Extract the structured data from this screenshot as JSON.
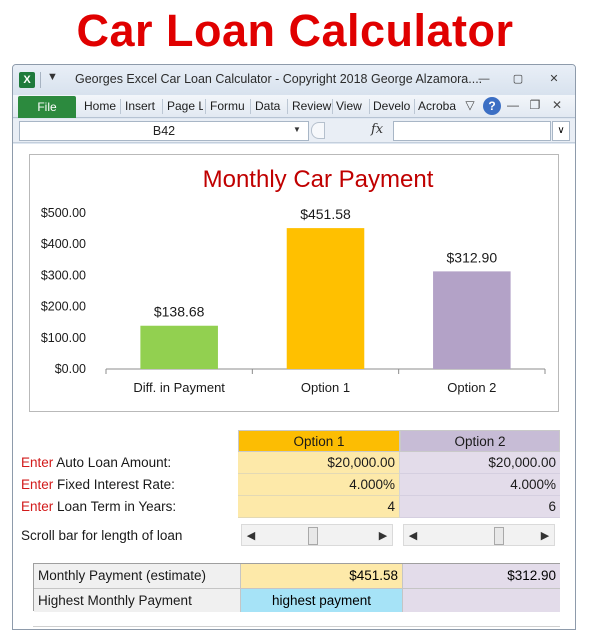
{
  "banner": {
    "title": "Car Loan Calculator"
  },
  "window": {
    "title": "Georges Excel Car Loan Calculator - Copyright 2018 George Alzamora....",
    "app_icon": "excel-icon",
    "controls": {
      "minimize": "—",
      "restore": "▢",
      "close": "✕"
    }
  },
  "ribbon": {
    "file_label": "File",
    "tabs": [
      "Home",
      "Insert",
      "Page L",
      "Formu",
      "Data",
      "Review",
      "View",
      "Develo",
      "Acroba"
    ],
    "help_label": "?"
  },
  "formula_bar": {
    "name_box": "B42",
    "fx_label": "fx",
    "formula": ""
  },
  "chart_data": {
    "type": "bar",
    "title": "Monthly Car Payment",
    "categories": [
      "Diff. in Payment",
      "Option 1",
      "Option 2"
    ],
    "values": [
      138.68,
      451.58,
      312.9
    ],
    "data_labels": [
      "$138.68",
      "$451.58",
      "$312.90"
    ],
    "colors": [
      "#92d050",
      "#ffc000",
      "#b3a2c7"
    ],
    "ylim": [
      0,
      500
    ],
    "yticks": [
      0,
      100,
      200,
      300,
      400,
      500
    ],
    "ytick_labels": [
      "$0.00",
      "$100.00",
      "$200.00",
      "$300.00",
      "$400.00",
      "$500.00"
    ],
    "grid": false,
    "legend": "none"
  },
  "table": {
    "headers": {
      "option1": "Option 1",
      "option2": "Option 2"
    },
    "rows": [
      {
        "enter": "Enter",
        "label": " Auto Loan Amount:",
        "option1": "$20,000.00",
        "option2": "$20,000.00"
      },
      {
        "enter": "Enter",
        "label": " Fixed Interest Rate:",
        "option1": "4.000%",
        "option2": "4.000%"
      },
      {
        "enter": "Enter",
        "label": " Loan Term in Years:",
        "option1": "4",
        "option2": "6"
      }
    ],
    "scroll_label": "Scroll bar for length of loan",
    "scroll_left": "◀",
    "scroll_right": "▶"
  },
  "results": {
    "monthly_label": "Monthly Payment (estimate)",
    "monthly_option1": "$451.58",
    "monthly_option2": "$312.90",
    "highest_label": "Highest Monthly Payment",
    "highest_value": "highest payment",
    "highest_color": "#a6e3f7"
  }
}
